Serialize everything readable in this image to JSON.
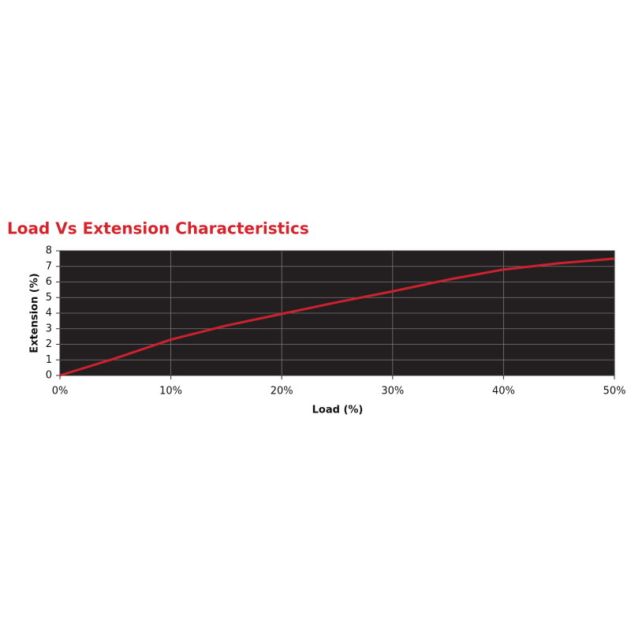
{
  "chart_data": {
    "type": "line",
    "title": "Load Vs Extension Characteristics",
    "x_label": "Load (%)",
    "y_label": "Extension (%)",
    "x": [
      0,
      5,
      7.5,
      10,
      15,
      20,
      25,
      30,
      35,
      40,
      45,
      50
    ],
    "series": [
      {
        "name": "Extension",
        "color": "#cc2230",
        "values": [
          0,
          1.1,
          1.7,
          2.3,
          3.2,
          3.95,
          4.7,
          5.4,
          6.15,
          6.8,
          7.2,
          7.5
        ]
      }
    ],
    "xlim": [
      0,
      50
    ],
    "xticks": [
      {
        "value": 0,
        "label": "0%"
      },
      {
        "value": 10,
        "label": "10%"
      },
      {
        "value": 20,
        "label": "20%"
      },
      {
        "value": 30,
        "label": "30%"
      },
      {
        "value": 40,
        "label": "40%"
      },
      {
        "value": 50,
        "label": "50%"
      }
    ],
    "ylim": [
      0,
      8
    ],
    "yticks": [
      0,
      1,
      2,
      3,
      4,
      5,
      6,
      7,
      8
    ],
    "grid": true,
    "plot_background": "#231f20"
  }
}
